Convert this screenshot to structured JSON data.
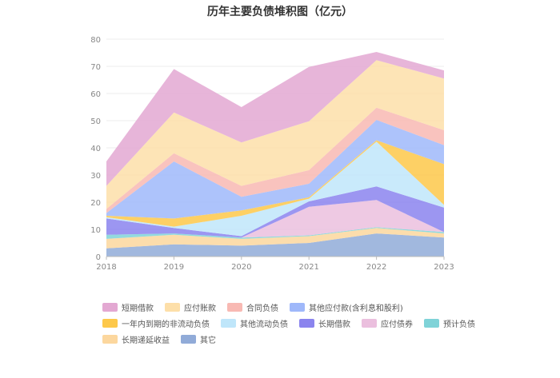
{
  "chart_data": {
    "type": "area",
    "title": "历年主要负债堆积图（亿元）",
    "xlabel": "",
    "ylabel": "",
    "categories": [
      "2018",
      "2019",
      "2020",
      "2021",
      "2022",
      "2023"
    ],
    "ylim": [
      0,
      80
    ],
    "yticks": [
      0,
      10,
      20,
      30,
      40,
      50,
      60,
      70,
      80
    ],
    "stacked": true,
    "grid": true,
    "legend_position": "bottom",
    "series": [
      {
        "name": "其它",
        "color": "#91abd8",
        "values": [
          3.0,
          4.5,
          4.0,
          5.0,
          8.5,
          7.0
        ]
      },
      {
        "name": "长期递延收益",
        "color": "#fcd79e",
        "values": [
          3.5,
          3.5,
          2.5,
          2.5,
          2.0,
          1.5
        ]
      },
      {
        "name": "预计负债",
        "color": "#7fd3d8",
        "values": [
          1.5,
          0.5,
          0.5,
          0.3,
          0.3,
          0.5
        ]
      },
      {
        "name": "应付债券",
        "color": "#ebbfde",
        "values": [
          0,
          0,
          0,
          10.5,
          10.0,
          0
        ]
      },
      {
        "name": "长期借款",
        "color": "#8b84ee",
        "values": [
          6.0,
          2.0,
          0.5,
          2.0,
          5.0,
          9.0
        ]
      },
      {
        "name": "其他流动负债",
        "color": "#bfe6fa",
        "values": [
          0.5,
          0.5,
          7.5,
          1.0,
          16.5,
          1.0
        ]
      },
      {
        "name": "一年内到期的非流动负债",
        "color": "#fdc84a",
        "values": [
          0.5,
          3.0,
          2.0,
          0.5,
          0.5,
          15.0
        ]
      },
      {
        "name": "其他应付款(含利息和股利)",
        "color": "#9fb8fa",
        "values": [
          1.0,
          21.0,
          5.0,
          5.0,
          7.5,
          7.0
        ]
      },
      {
        "name": "合同负债",
        "color": "#f8b9b3",
        "values": [
          1.5,
          3.0,
          4.0,
          5.0,
          4.5,
          5.5
        ]
      },
      {
        "name": "应付账款",
        "color": "#fddfa9",
        "values": [
          8.5,
          15.0,
          16.0,
          18.0,
          17.5,
          19.0
        ]
      },
      {
        "name": "短期借款",
        "color": "#e3a8d2",
        "values": [
          9.0,
          16.0,
          13.0,
          20.0,
          3.0,
          3.0
        ]
      }
    ],
    "legend_order": [
      [
        "短期借款",
        "应付账款",
        "合同负债",
        "其他应付款(含利息和股利)"
      ],
      [
        "一年内到期的非流动负债",
        "其他流动负债",
        "长期借款",
        "应付债券",
        "预计负债"
      ],
      [
        "长期递延收益",
        "其它"
      ]
    ]
  }
}
